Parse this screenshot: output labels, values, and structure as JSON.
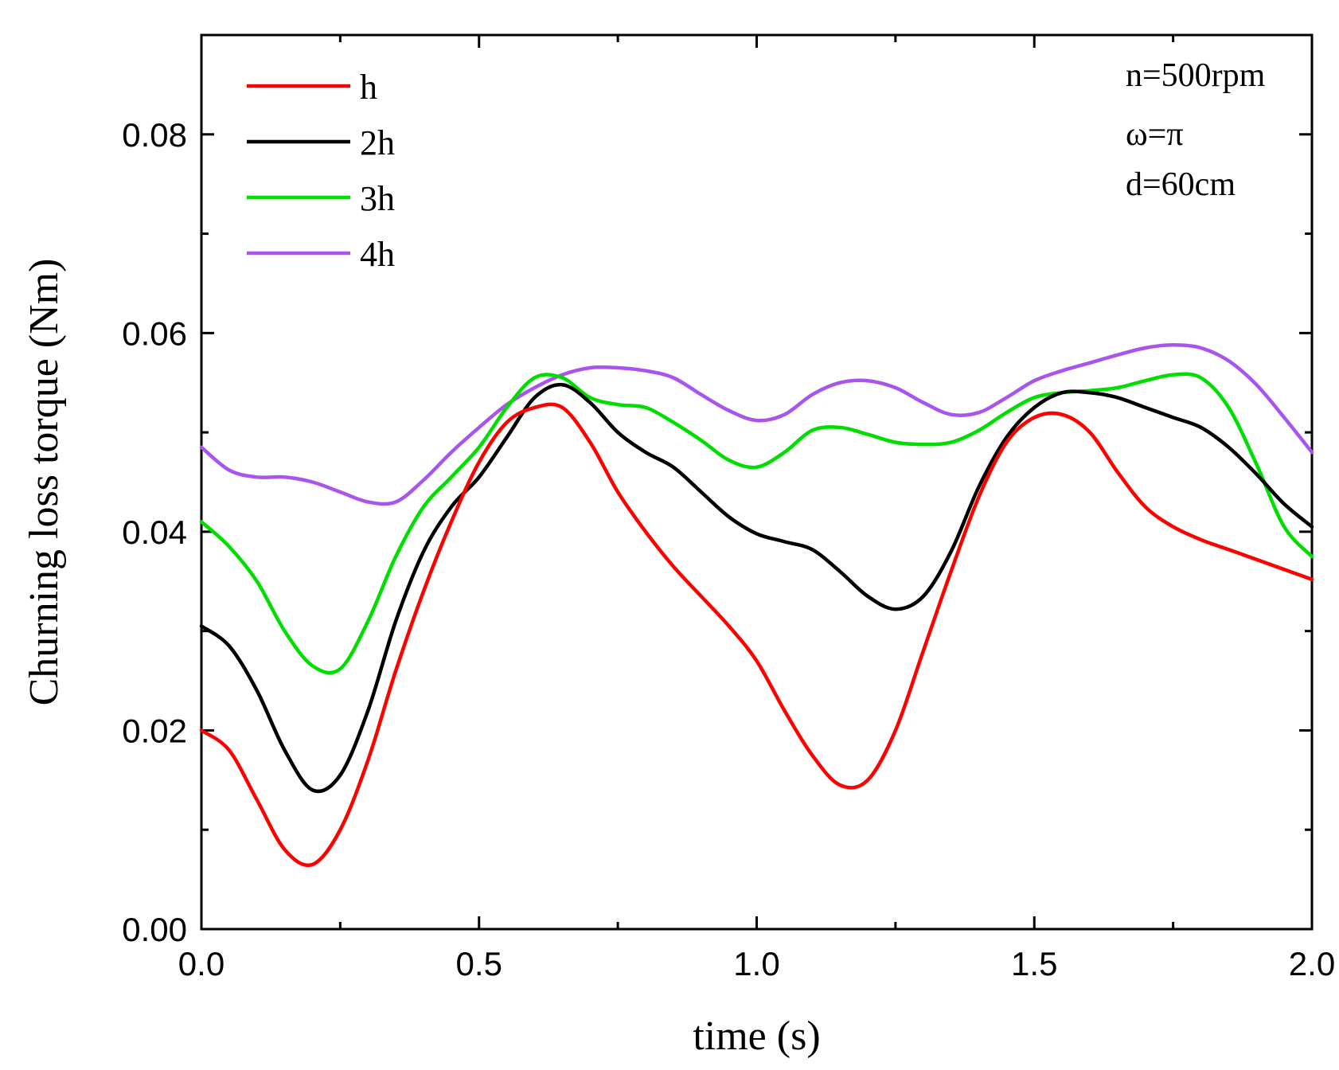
{
  "chart_data": {
    "type": "line",
    "title": "",
    "xlabel": "time (s)",
    "ylabel": "Churning loss torque (Nm)",
    "xlim": [
      0,
      2.0
    ],
    "ylim": [
      0,
      0.09
    ],
    "xticks": [
      0,
      0.5,
      1.0,
      1.5,
      2.0
    ],
    "xtick_labels": [
      "0.0",
      "0.5",
      "1.0",
      "1.5",
      "2.0"
    ],
    "yticks": [
      0,
      0.02,
      0.04,
      0.06,
      0.08
    ],
    "ytick_labels": [
      "0.00",
      "0.02",
      "0.04",
      "0.06",
      "0.08"
    ],
    "legend_position": "top-left",
    "annotations": [
      "n=500rpm",
      "ω=π",
      "d=60cm"
    ],
    "series": [
      {
        "name": "h",
        "color": "#ff0000",
        "x": [
          0,
          0.05,
          0.1,
          0.15,
          0.2,
          0.25,
          0.3,
          0.35,
          0.4,
          0.45,
          0.5,
          0.55,
          0.6,
          0.65,
          0.7,
          0.75,
          0.8,
          0.85,
          0.9,
          0.95,
          1.0,
          1.05,
          1.1,
          1.15,
          1.2,
          1.25,
          1.3,
          1.35,
          1.4,
          1.45,
          1.5,
          1.55,
          1.6,
          1.65,
          1.7,
          1.75,
          1.8,
          1.85,
          1.9,
          1.95,
          2.0
        ],
        "values": [
          0.02,
          0.018,
          0.013,
          0.008,
          0.0065,
          0.01,
          0.017,
          0.026,
          0.034,
          0.041,
          0.047,
          0.051,
          0.0525,
          0.0525,
          0.049,
          0.044,
          0.04,
          0.0365,
          0.0335,
          0.0305,
          0.027,
          0.022,
          0.0175,
          0.0145,
          0.015,
          0.02,
          0.028,
          0.036,
          0.0435,
          0.049,
          0.0515,
          0.0518,
          0.05,
          0.046,
          0.0425,
          0.0405,
          0.0392,
          0.0382,
          0.0372,
          0.0362,
          0.0352
        ]
      },
      {
        "name": "2h",
        "color": "#000000",
        "x": [
          0,
          0.05,
          0.1,
          0.15,
          0.2,
          0.25,
          0.3,
          0.35,
          0.4,
          0.45,
          0.5,
          0.55,
          0.6,
          0.65,
          0.7,
          0.75,
          0.8,
          0.85,
          0.9,
          0.95,
          1.0,
          1.05,
          1.1,
          1.15,
          1.2,
          1.25,
          1.3,
          1.35,
          1.4,
          1.45,
          1.5,
          1.55,
          1.6,
          1.65,
          1.7,
          1.75,
          1.8,
          1.85,
          1.9,
          1.95,
          2.0
        ],
        "values": [
          0.0305,
          0.0285,
          0.024,
          0.018,
          0.014,
          0.0155,
          0.022,
          0.031,
          0.038,
          0.0425,
          0.0455,
          0.0495,
          0.0535,
          0.0548,
          0.053,
          0.05,
          0.048,
          0.0465,
          0.044,
          0.0415,
          0.0398,
          0.039,
          0.0382,
          0.036,
          0.0335,
          0.0322,
          0.0335,
          0.038,
          0.0445,
          0.0495,
          0.0525,
          0.054,
          0.054,
          0.0535,
          0.0525,
          0.0515,
          0.0505,
          0.0485,
          0.0458,
          0.0428,
          0.0405
        ]
      },
      {
        "name": "3h",
        "color": "#00dd00",
        "x": [
          0,
          0.05,
          0.1,
          0.15,
          0.2,
          0.25,
          0.3,
          0.35,
          0.4,
          0.45,
          0.5,
          0.55,
          0.6,
          0.65,
          0.7,
          0.75,
          0.8,
          0.85,
          0.9,
          0.95,
          1.0,
          1.05,
          1.1,
          1.15,
          1.2,
          1.25,
          1.3,
          1.35,
          1.4,
          1.45,
          1.5,
          1.55,
          1.6,
          1.65,
          1.7,
          1.75,
          1.8,
          1.85,
          1.9,
          1.95,
          2.0
        ],
        "values": [
          0.041,
          0.0385,
          0.035,
          0.03,
          0.0265,
          0.0262,
          0.031,
          0.0375,
          0.0425,
          0.0455,
          0.0485,
          0.0525,
          0.0555,
          0.0555,
          0.0535,
          0.0528,
          0.0525,
          0.051,
          0.0492,
          0.0472,
          0.0465,
          0.048,
          0.0502,
          0.0505,
          0.0498,
          0.049,
          0.0488,
          0.049,
          0.0502,
          0.052,
          0.0535,
          0.054,
          0.0542,
          0.0545,
          0.0552,
          0.0558,
          0.0555,
          0.0525,
          0.0468,
          0.0405,
          0.0375
        ]
      },
      {
        "name": "4h",
        "color": "#a855ee",
        "x": [
          0,
          0.05,
          0.1,
          0.15,
          0.2,
          0.25,
          0.3,
          0.35,
          0.4,
          0.45,
          0.5,
          0.55,
          0.6,
          0.65,
          0.7,
          0.75,
          0.8,
          0.85,
          0.9,
          0.95,
          1.0,
          1.05,
          1.1,
          1.15,
          1.2,
          1.25,
          1.3,
          1.35,
          1.4,
          1.45,
          1.5,
          1.55,
          1.6,
          1.65,
          1.7,
          1.75,
          1.8,
          1.85,
          1.9,
          1.95,
          2.0
        ],
        "values": [
          0.0485,
          0.0462,
          0.0455,
          0.0455,
          0.045,
          0.044,
          0.043,
          0.043,
          0.0452,
          0.048,
          0.0505,
          0.0528,
          0.0545,
          0.0558,
          0.0565,
          0.0565,
          0.0562,
          0.0555,
          0.0538,
          0.0522,
          0.0512,
          0.0518,
          0.0538,
          0.055,
          0.0552,
          0.0545,
          0.053,
          0.0518,
          0.052,
          0.0535,
          0.0552,
          0.0562,
          0.057,
          0.0578,
          0.0585,
          0.0588,
          0.0585,
          0.0572,
          0.0548,
          0.0515,
          0.048
        ]
      }
    ]
  }
}
